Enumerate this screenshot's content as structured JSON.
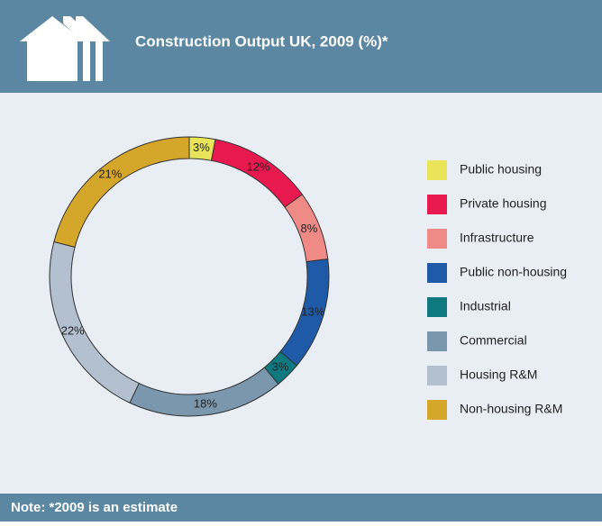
{
  "chart_data": {
    "type": "donut",
    "title": "Construction Output UK, 2009 (%)*",
    "note": "Note: *2009 is an estimate",
    "categories": [
      "Public housing",
      "Private housing",
      "Infrastructure",
      "Public non-housing",
      "Industrial",
      "Commercial",
      "Housing R&M",
      "Non-housing R&M"
    ],
    "values": [
      3,
      12,
      8,
      13,
      3,
      18,
      22,
      21
    ],
    "value_labels": [
      "3%",
      "12%",
      "8%",
      "13%",
      "3%",
      "18%",
      "22%",
      "21%"
    ],
    "colors": [
      "#e8e55a",
      "#e8194f",
      "#f08a86",
      "#1f5aa8",
      "#0e7a80",
      "#7b97ae",
      "#b3c0cf",
      "#d4a62a"
    ],
    "legend": "right"
  }
}
